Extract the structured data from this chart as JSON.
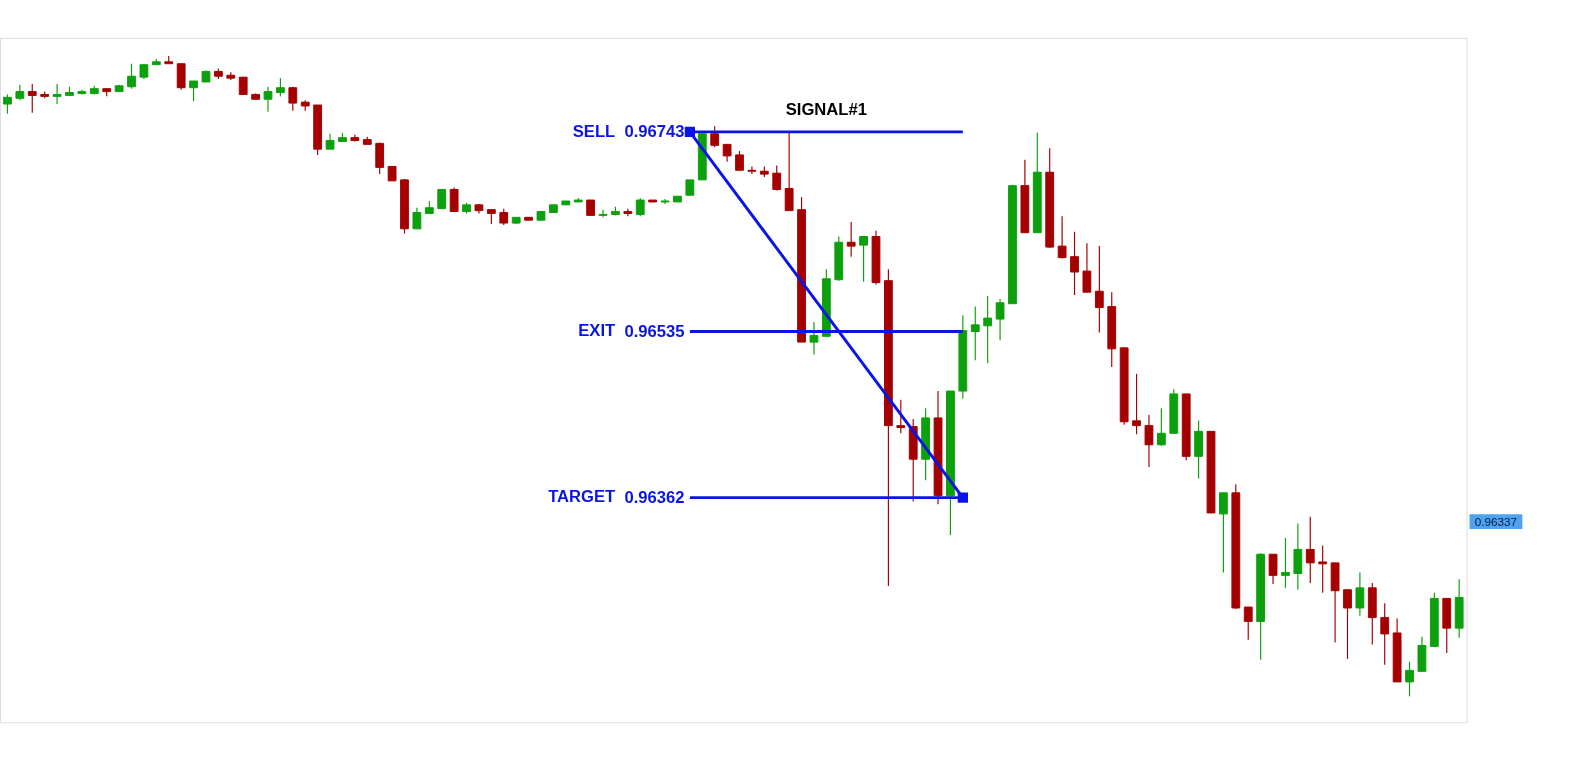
{
  "chart_data": {
    "type": "candlestick",
    "categories": [
      null,
      null,
      null,
      null,
      null,
      null,
      null,
      null,
      null,
      null,
      null,
      null,
      null,
      null,
      null,
      null,
      null,
      null,
      null,
      null,
      null,
      null,
      null,
      null,
      null,
      null,
      null,
      null,
      null,
      null,
      null,
      null,
      null,
      null,
      null,
      null,
      null,
      null,
      null,
      null,
      null,
      null,
      null,
      null,
      null,
      null,
      null,
      null,
      null,
      null,
      null,
      null,
      null,
      null,
      null,
      null,
      null,
      null,
      null,
      null,
      null,
      null,
      null,
      null,
      null,
      null,
      null,
      null,
      null,
      null,
      null,
      null,
      null,
      null,
      null,
      null,
      null,
      null,
      null,
      null,
      null,
      null,
      null,
      null,
      null,
      null,
      null,
      null,
      null,
      null,
      null,
      null,
      null,
      null,
      null,
      null,
      null,
      null,
      null,
      null,
      null,
      null,
      null,
      null,
      null,
      null,
      null,
      null,
      null,
      null,
      null,
      null,
      null,
      null,
      null,
      null,
      null,
      null
    ],
    "ohlc": [
      [
        0.96772,
        0.96782,
        0.96762,
        0.96779
      ],
      [
        0.96778,
        0.96792,
        0.96776,
        0.96785
      ],
      [
        0.96785,
        0.96793,
        0.96763,
        0.96781
      ],
      [
        0.96782,
        0.96785,
        0.96778,
        0.9678
      ],
      [
        0.9678,
        0.96793,
        0.96772,
        0.96782
      ],
      [
        0.96781,
        0.9679,
        0.96781,
        0.96784
      ],
      [
        0.96783,
        0.96787,
        0.96782,
        0.96785
      ],
      [
        0.96783,
        0.96791,
        0.96782,
        0.96788
      ],
      [
        0.96788,
        0.96788,
        0.9678,
        0.96785
      ],
      [
        0.96785,
        0.96792,
        0.96785,
        0.96791
      ],
      [
        0.9679,
        0.96814,
        0.96788,
        0.96801
      ],
      [
        0.968,
        0.96813,
        0.96798,
        0.96813
      ],
      [
        0.96813,
        0.96819,
        0.96813,
        0.96816
      ],
      [
        0.96816,
        0.96822,
        0.96814,
        0.96814
      ],
      [
        0.96814,
        0.96814,
        0.96787,
        0.96789
      ],
      [
        0.96789,
        0.96796,
        0.96775,
        0.96796
      ],
      [
        0.96795,
        0.96807,
        0.96795,
        0.96806
      ],
      [
        0.96806,
        0.96809,
        0.96798,
        0.96801
      ],
      [
        0.96802,
        0.96805,
        0.96797,
        0.96799
      ],
      [
        0.968,
        0.968,
        0.96782,
        0.96782
      ],
      [
        0.96782,
        0.96783,
        0.96777,
        0.96777
      ],
      [
        0.96777,
        0.9679,
        0.96764,
        0.96785
      ],
      [
        0.96784,
        0.96799,
        0.9678,
        0.96789
      ],
      [
        0.96789,
        0.9679,
        0.96765,
        0.96773
      ],
      [
        0.96774,
        0.96776,
        0.96765,
        0.9677
      ],
      [
        0.96771,
        0.96771,
        0.96719,
        0.96725
      ],
      [
        0.96725,
        0.96741,
        0.96725,
        0.96734
      ],
      [
        0.96733,
        0.96742,
        0.96733,
        0.96737
      ],
      [
        0.96737,
        0.9674,
        0.96733,
        0.96734
      ],
      [
        0.96735,
        0.96738,
        0.9673,
        0.9673
      ],
      [
        0.96731,
        0.96732,
        0.96699,
        0.96706
      ],
      [
        0.96707,
        0.96707,
        0.96692,
        0.96692
      ],
      [
        0.96693,
        0.96694,
        0.96637,
        0.96642
      ],
      [
        0.96642,
        0.96664,
        0.96642,
        0.96659
      ],
      [
        0.96658,
        0.96671,
        0.96658,
        0.96664
      ],
      [
        0.96663,
        0.96683,
        0.96663,
        0.96683
      ],
      [
        0.96683,
        0.96685,
        0.9666,
        0.9666
      ],
      [
        0.9666,
        0.96669,
        0.96658,
        0.96667
      ],
      [
        0.96667,
        0.96668,
        0.96658,
        0.96661
      ],
      [
        0.96662,
        0.96662,
        0.96647,
        0.96658
      ],
      [
        0.96659,
        0.96663,
        0.96646,
        0.96648
      ],
      [
        0.96648,
        0.96654,
        0.96647,
        0.96654
      ],
      [
        0.96654,
        0.96654,
        0.96651,
        0.96651
      ],
      [
        0.96651,
        0.9666,
        0.96651,
        0.9666
      ],
      [
        0.96659,
        0.96667,
        0.96659,
        0.96667
      ],
      [
        0.96667,
        0.96671,
        0.96667,
        0.96671
      ],
      [
        0.9667,
        0.96674,
        0.9667,
        0.96672
      ],
      [
        0.96672,
        0.96672,
        0.96656,
        0.96656
      ],
      [
        0.96656,
        0.96662,
        0.96654,
        0.96657
      ],
      [
        0.96657,
        0.96665,
        0.96656,
        0.9666
      ],
      [
        0.9666,
        0.96663,
        0.96655,
        0.96658
      ],
      [
        0.96657,
        0.96674,
        0.96655,
        0.96672
      ],
      [
        0.96672,
        0.96672,
        0.9667,
        0.9667
      ],
      [
        0.9667,
        0.96673,
        0.96668,
        0.96671
      ],
      [
        0.9667,
        0.96676,
        0.9667,
        0.96676
      ],
      [
        0.96677,
        0.96693,
        0.96677,
        0.96693
      ],
      [
        0.96693,
        0.96742,
        0.96693,
        0.96741
      ],
      [
        0.96741,
        0.96749,
        0.96727,
        0.96729
      ],
      [
        0.9673,
        0.9673,
        0.96712,
        0.96718
      ],
      [
        0.96719,
        0.96723,
        0.96703,
        0.96703
      ],
      [
        0.96703,
        0.96707,
        0.96699,
        0.96702
      ],
      [
        0.96702,
        0.96707,
        0.96696,
        0.96699
      ],
      [
        0.967,
        0.96708,
        0.96682,
        0.96683
      ],
      [
        0.96684,
        0.96742,
        0.96661,
        0.96661
      ],
      [
        0.96662,
        0.96675,
        0.96524,
        0.96524
      ],
      [
        0.96524,
        0.96545,
        0.96511,
        0.96531
      ],
      [
        0.9653,
        0.966,
        0.9653,
        0.9659
      ],
      [
        0.96589,
        0.96634,
        0.96588,
        0.96628
      ],
      [
        0.96628,
        0.96649,
        0.96613,
        0.96624
      ],
      [
        0.96625,
        0.96634,
        0.96587,
        0.96634
      ],
      [
        0.96634,
        0.9664,
        0.96584,
        0.96586
      ],
      [
        0.96588,
        0.966,
        0.9627,
        0.96437
      ],
      [
        0.96437,
        0.96464,
        0.96429,
        0.96435
      ],
      [
        0.96436,
        0.96444,
        0.96358,
        0.96402
      ],
      [
        0.96402,
        0.96455,
        0.9638,
        0.96445
      ],
      [
        0.96445,
        0.96473,
        0.96355,
        0.96364
      ],
      [
        0.96364,
        0.96473,
        0.96323,
        0.96473
      ],
      [
        0.96473,
        0.96552,
        0.96465,
        0.96536
      ],
      [
        0.96535,
        0.96561,
        0.96505,
        0.96542
      ],
      [
        0.96541,
        0.96572,
        0.96502,
        0.96549
      ],
      [
        0.96548,
        0.96569,
        0.96526,
        0.96565
      ],
      [
        0.96564,
        0.96688,
        0.96564,
        0.96687
      ],
      [
        0.96687,
        0.96714,
        0.96638,
        0.96638
      ],
      [
        0.96638,
        0.96742,
        0.96638,
        0.96701
      ],
      [
        0.96701,
        0.96726,
        0.96622,
        0.96623
      ],
      [
        0.96624,
        0.96655,
        0.96611,
        0.96612
      ],
      [
        0.96613,
        0.96639,
        0.96573,
        0.96597
      ],
      [
        0.96598,
        0.96627,
        0.96576,
        0.96576
      ],
      [
        0.96577,
        0.96624,
        0.96534,
        0.9656
      ],
      [
        0.96561,
        0.96576,
        0.96498,
        0.96517
      ],
      [
        0.96518,
        0.96519,
        0.96438,
        0.96441
      ],
      [
        0.96442,
        0.96491,
        0.96428,
        0.96437
      ],
      [
        0.96437,
        0.96448,
        0.96394,
        0.96417
      ],
      [
        0.96417,
        0.96455,
        0.96416,
        0.96429
      ],
      [
        0.96429,
        0.96475,
        0.96429,
        0.9647
      ],
      [
        0.9647,
        0.9647,
        0.96401,
        0.96405
      ],
      [
        0.96405,
        0.96442,
        0.96382,
        0.96431
      ],
      [
        0.96431,
        0.96431,
        0.96346,
        0.96346
      ],
      [
        0.96345,
        0.96367,
        0.96284,
        0.96367
      ],
      [
        0.96367,
        0.96376,
        0.96246,
        0.96247
      ],
      [
        0.96248,
        0.96248,
        0.96214,
        0.96233
      ],
      [
        0.96233,
        0.96304,
        0.96193,
        0.96303
      ],
      [
        0.96303,
        0.96303,
        0.96272,
        0.96281
      ],
      [
        0.96281,
        0.9632,
        0.96268,
        0.96284
      ],
      [
        0.96283,
        0.96335,
        0.96266,
        0.96308
      ],
      [
        0.96308,
        0.96342,
        0.96273,
        0.96294
      ],
      [
        0.96295,
        0.96312,
        0.96263,
        0.96293
      ],
      [
        0.96294,
        0.96294,
        0.96211,
        0.96265
      ],
      [
        0.96266,
        0.96266,
        0.96194,
        0.96247
      ],
      [
        0.96247,
        0.96284,
        0.96239,
        0.96268
      ],
      [
        0.96268,
        0.96273,
        0.96209,
        0.96237
      ],
      [
        0.96237,
        0.96252,
        0.96188,
        0.9622
      ],
      [
        0.96221,
        0.96236,
        0.9617,
        0.9617
      ],
      [
        0.9617,
        0.96191,
        0.96155,
        0.96182
      ],
      [
        0.96181,
        0.96217,
        0.96181,
        0.96208
      ],
      [
        0.96207,
        0.96263,
        0.96206,
        0.96257
      ],
      [
        0.96257,
        0.96257,
        0.962,
        0.96226
      ],
      [
        0.96226,
        0.96277,
        0.96216,
        0.96258
      ]
    ],
    "colors": [
      "#0ca10c",
      "#0ca10c",
      "#a50000",
      "#a50000",
      "#0ca10c",
      "#0ca10c",
      "#0ca10c",
      "#0ca10c",
      "#a50000",
      "#0ca10c",
      "#0ca10c",
      "#0ca10c",
      "#0ca10c",
      "#a50000",
      "#a50000",
      "#0ca10c",
      "#0ca10c",
      "#a50000",
      "#a50000",
      "#a50000",
      "#a50000",
      "#0ca10c",
      "#0ca10c",
      "#a50000",
      "#a50000",
      "#a50000",
      "#0ca10c",
      "#0ca10c",
      "#a50000",
      "#a50000",
      "#a50000",
      "#a50000",
      "#a50000",
      "#0ca10c",
      "#0ca10c",
      "#0ca10c",
      "#a50000",
      "#0ca10c",
      "#a50000",
      "#a50000",
      "#a50000",
      "#0ca10c",
      "#a50000",
      "#0ca10c",
      "#0ca10c",
      "#0ca10c",
      "#0ca10c",
      "#a50000",
      "#0ca10c",
      "#0ca10c",
      "#a50000",
      "#0ca10c",
      "#a50000",
      "#0ca10c",
      "#0ca10c",
      "#0ca10c",
      "#0ca10c",
      "#a50000",
      "#a50000",
      "#a50000",
      "#a50000",
      "#a50000",
      "#a50000",
      "#a50000",
      "#a50000",
      "#0ca10c",
      "#0ca10c",
      "#0ca10c",
      "#a50000",
      "#0ca10c",
      "#a50000",
      "#a50000",
      "#a50000",
      "#a50000",
      "#0ca10c",
      "#a50000",
      "#0ca10c",
      "#0ca10c",
      "#0ca10c",
      "#0ca10c",
      "#0ca10c",
      "#0ca10c",
      "#a50000",
      "#0ca10c",
      "#a50000",
      "#a50000",
      "#a50000",
      "#a50000",
      "#a50000",
      "#a50000",
      "#a50000",
      "#a50000",
      "#a50000",
      "#0ca10c",
      "#0ca10c",
      "#a50000",
      "#0ca10c",
      "#a50000",
      "#0ca10c",
      "#a50000",
      "#a50000",
      "#0ca10c",
      "#a50000",
      "#0ca10c",
      "#0ca10c",
      "#a50000",
      "#a50000",
      "#a50000",
      "#a50000",
      "#0ca10c",
      "#a50000",
      "#a50000",
      "#a50000",
      "#0ca10c",
      "#0ca10c",
      "#0ca10c",
      "#a50000",
      "#0ca10c"
    ],
    "series": [
      {
        "type": "line",
        "color": "#0a14e6",
        "values": [
          null,
          null,
          null,
          null,
          null,
          null,
          null,
          null,
          null,
          null,
          null,
          null,
          null,
          null,
          null,
          null,
          null,
          null,
          null,
          null,
          null,
          null,
          null,
          null,
          null,
          null,
          null,
          null,
          null,
          null,
          null,
          null,
          null,
          null,
          null,
          null,
          null,
          null,
          null,
          null,
          null,
          null,
          null,
          null,
          null,
          null,
          null,
          null,
          null,
          null,
          null,
          null,
          null,
          null,
          null,
          0.96743,
          0.96743,
          0.96743,
          0.96743,
          0.96743,
          0.96743,
          0.96743,
          0.96743,
          0.96743,
          0.96743,
          0.96743,
          0.96743,
          0.96743,
          0.96743,
          0.96743,
          0.96743,
          0.96743,
          0.96743,
          0.96743,
          0.96743,
          0.96743,
          0.96743,
          0.96743,
          null,
          null,
          null,
          null,
          null,
          null,
          null,
          null,
          null,
          null,
          null,
          null,
          null,
          null,
          null,
          null,
          null,
          null,
          null,
          null,
          null,
          null,
          null,
          null,
          null,
          null,
          null,
          null,
          null,
          null,
          null,
          null,
          null,
          null,
          null,
          null,
          null,
          null,
          null,
          null
        ]
      },
      {
        "type": "line",
        "color": "#0a14e6",
        "values": [
          null,
          null,
          null,
          null,
          null,
          null,
          null,
          null,
          null,
          null,
          null,
          null,
          null,
          null,
          null,
          null,
          null,
          null,
          null,
          null,
          null,
          null,
          null,
          null,
          null,
          null,
          null,
          null,
          null,
          null,
          null,
          null,
          null,
          null,
          null,
          null,
          null,
          null,
          null,
          null,
          null,
          null,
          null,
          null,
          null,
          null,
          null,
          null,
          null,
          null,
          null,
          null,
          null,
          null,
          null,
          0.96535,
          0.96535,
          0.96535,
          0.96535,
          0.96535,
          0.96535,
          0.96535,
          0.96535,
          0.96535,
          0.96535,
          0.96535,
          0.96535,
          0.96535,
          0.96535,
          0.96535,
          0.96535,
          0.96535,
          0.96535,
          0.96535,
          0.96535,
          0.96535,
          0.96535,
          0.96535,
          null,
          null,
          null,
          null,
          null,
          null,
          null,
          null,
          null,
          null,
          null,
          null,
          null,
          null,
          null,
          null,
          null,
          null,
          null,
          null,
          null,
          null,
          null,
          null,
          null,
          null,
          null,
          null,
          null,
          null,
          null,
          null,
          null,
          null,
          null,
          null,
          null,
          null,
          null,
          null
        ]
      },
      {
        "type": "line",
        "color": "#0a14e6",
        "values": [
          null,
          null,
          null,
          null,
          null,
          null,
          null,
          null,
          null,
          null,
          null,
          null,
          null,
          null,
          null,
          null,
          null,
          null,
          null,
          null,
          null,
          null,
          null,
          null,
          null,
          null,
          null,
          null,
          null,
          null,
          null,
          null,
          null,
          null,
          null,
          null,
          null,
          null,
          null,
          null,
          null,
          null,
          null,
          null,
          null,
          null,
          null,
          null,
          null,
          null,
          null,
          null,
          null,
          null,
          null,
          0.96362,
          0.96362,
          0.96362,
          0.96362,
          0.96362,
          0.96362,
          0.96362,
          0.96362,
          0.96362,
          0.96362,
          0.96362,
          0.96362,
          0.96362,
          0.96362,
          0.96362,
          0.96362,
          0.96362,
          0.96362,
          0.96362,
          0.96362,
          0.96362,
          0.96362,
          0.96362,
          null,
          null,
          null,
          null,
          null,
          null,
          null,
          null,
          null,
          null,
          null,
          null,
          null,
          null,
          null,
          null,
          null,
          null,
          null,
          null,
          null,
          null,
          null,
          null,
          null,
          null,
          null,
          null,
          null,
          null,
          null,
          null,
          null,
          null,
          null,
          null,
          null,
          null,
          null,
          null
        ]
      },
      {
        "type": "line",
        "color": "#0a14e6",
        "marker": "square",
        "values": [
          null,
          null,
          null,
          null,
          null,
          null,
          null,
          null,
          null,
          null,
          null,
          null,
          null,
          null,
          null,
          null,
          null,
          null,
          null,
          null,
          null,
          null,
          null,
          null,
          null,
          null,
          null,
          null,
          null,
          null,
          null,
          null,
          null,
          null,
          null,
          null,
          null,
          null,
          null,
          null,
          null,
          null,
          null,
          null,
          null,
          null,
          null,
          null,
          null,
          null,
          null,
          null,
          null,
          null,
          null,
          0.96743,
          null,
          null,
          null,
          null,
          null,
          null,
          null,
          null,
          null,
          null,
          null,
          null,
          null,
          null,
          null,
          null,
          null,
          null,
          null,
          null,
          null,
          0.96362,
          null,
          null,
          null,
          null,
          null,
          null,
          null,
          null,
          null,
          null,
          null,
          null,
          null,
          null,
          null,
          null,
          null,
          null,
          null,
          null,
          null,
          null,
          null,
          null,
          null,
          null,
          null,
          null,
          null,
          null,
          null,
          null,
          null,
          null,
          null,
          null,
          null,
          null,
          null,
          null
        ]
      }
    ],
    "annotations": [
      "SELL",
      "EXIT",
      "TARGET",
      "SIGNAL#1",
      "0.96337"
    ],
    "ylim": [
      0.96128,
      0.96841
    ],
    "yticks": [
      0.96743,
      0.96535,
      0.96362
    ]
  }
}
